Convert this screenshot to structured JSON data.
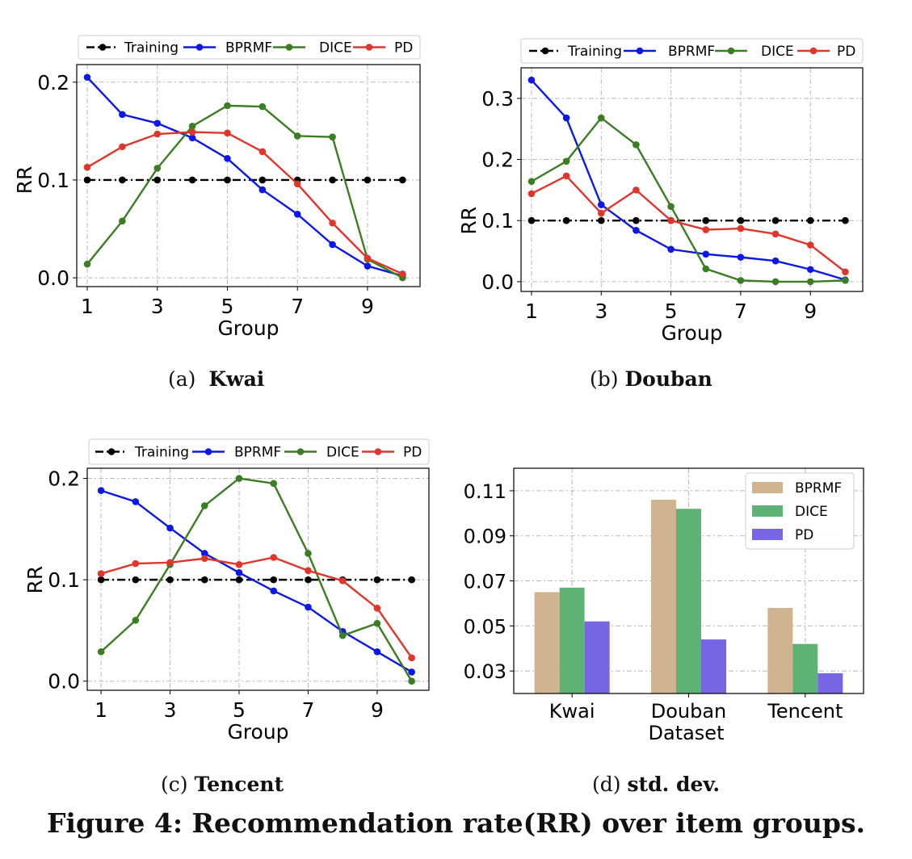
{
  "figure": {
    "title": "Figure 4: Recommendation rate(RR) over item groups.",
    "colors": {
      "Training": "#000000",
      "BPRMF": "#0b18e6",
      "DICE": "#3a7d22",
      "PD": "#e0352b"
    }
  },
  "chart_data": [
    {
      "id": "a",
      "type": "line",
      "caption_label": "(a)",
      "caption_name": "Kwai",
      "xlabel": "Group",
      "ylabel": "RR",
      "x": [
        1,
        2,
        3,
        4,
        5,
        6,
        7,
        8,
        9,
        10
      ],
      "xticks": [
        "1",
        "3",
        "5",
        "7",
        "9"
      ],
      "yticks": [
        "0.0",
        "0.1",
        "0.2"
      ],
      "xlim": [
        0.7,
        10.5
      ],
      "ylim": [
        -0.009,
        0.218
      ],
      "grid": true,
      "legend": "top",
      "series": [
        {
          "name": "Training",
          "values": [
            0.1,
            0.1,
            0.1,
            0.1,
            0.1,
            0.1,
            0.1,
            0.1,
            0.1,
            0.1
          ],
          "style": "dashdot"
        },
        {
          "name": "BPRMF",
          "values": [
            0.205,
            0.167,
            0.158,
            0.143,
            0.122,
            0.09,
            0.065,
            0.034,
            0.012,
            0.002
          ]
        },
        {
          "name": "DICE",
          "values": [
            0.014,
            0.058,
            0.112,
            0.155,
            0.176,
            0.175,
            0.145,
            0.144,
            0.019,
            0.0
          ]
        },
        {
          "name": "PD",
          "values": [
            0.113,
            0.134,
            0.147,
            0.149,
            0.148,
            0.129,
            0.096,
            0.056,
            0.02,
            0.004
          ]
        }
      ]
    },
    {
      "id": "b",
      "type": "line",
      "caption_label": "(b)",
      "caption_name": "Douban",
      "xlabel": "Group",
      "ylabel": "RR",
      "x": [
        1,
        2,
        3,
        4,
        5,
        6,
        7,
        8,
        9,
        10
      ],
      "xticks": [
        "1",
        "3",
        "5",
        "7",
        "9"
      ],
      "yticks": [
        "0.0",
        "0.1",
        "0.2",
        "0.3"
      ],
      "xlim": [
        0.7,
        10.5
      ],
      "ylim": [
        -0.016,
        0.35
      ],
      "grid": true,
      "legend": "top",
      "series": [
        {
          "name": "Training",
          "values": [
            0.1,
            0.1,
            0.1,
            0.1,
            0.1,
            0.1,
            0.1,
            0.1,
            0.1,
            0.1
          ],
          "style": "dashdot"
        },
        {
          "name": "BPRMF",
          "values": [
            0.33,
            0.268,
            0.126,
            0.084,
            0.053,
            0.045,
            0.04,
            0.034,
            0.02,
            0.003
          ]
        },
        {
          "name": "DICE",
          "values": [
            0.164,
            0.197,
            0.268,
            0.224,
            0.123,
            0.021,
            0.002,
            0.0,
            0.0,
            0.002
          ]
        },
        {
          "name": "PD",
          "values": [
            0.144,
            0.173,
            0.112,
            0.15,
            0.1,
            0.085,
            0.087,
            0.078,
            0.06,
            0.016
          ]
        }
      ]
    },
    {
      "id": "c",
      "type": "line",
      "caption_label": "(c)",
      "caption_name": "Tencent",
      "xlabel": "Group",
      "ylabel": "RR",
      "x": [
        1,
        2,
        3,
        4,
        5,
        6,
        7,
        8,
        9,
        10
      ],
      "xticks": [
        "1",
        "3",
        "5",
        "7",
        "9"
      ],
      "yticks": [
        "0.0",
        "0.1",
        "0.2"
      ],
      "xlim": [
        0.6,
        10.5
      ],
      "ylim": [
        -0.009,
        0.21
      ],
      "grid": true,
      "legend": "top",
      "series": [
        {
          "name": "Training",
          "values": [
            0.1,
            0.1,
            0.1,
            0.1,
            0.1,
            0.1,
            0.1,
            0.1,
            0.1,
            0.1
          ],
          "style": "dashdot"
        },
        {
          "name": "BPRMF",
          "values": [
            0.188,
            0.177,
            0.151,
            0.126,
            0.107,
            0.089,
            0.073,
            0.049,
            0.029,
            0.009
          ]
        },
        {
          "name": "DICE",
          "values": [
            0.029,
            0.06,
            0.115,
            0.173,
            0.2,
            0.195,
            0.126,
            0.045,
            0.057,
            0.0
          ]
        },
        {
          "name": "PD",
          "values": [
            0.106,
            0.116,
            0.117,
            0.121,
            0.115,
            0.122,
            0.109,
            0.099,
            0.072,
            0.023
          ]
        }
      ]
    },
    {
      "id": "d",
      "type": "bar",
      "caption_label": "(d)",
      "caption_name": "std. dev.",
      "xlabel": "Dataset",
      "ylabel": "",
      "categories": [
        "Kwai",
        "Douban",
        "Tencent"
      ],
      "yticks": [
        "0.03",
        "0.05",
        "0.07",
        "0.09",
        "0.11"
      ],
      "ylim": [
        0.02,
        0.12
      ],
      "grid": true,
      "legend": "top-right",
      "series": [
        {
          "name": "BPRMF",
          "values": [
            0.065,
            0.106,
            0.058
          ],
          "color": "#cfb48f"
        },
        {
          "name": "DICE",
          "values": [
            0.067,
            0.102,
            0.042
          ],
          "color": "#5fb275"
        },
        {
          "name": "PD",
          "values": [
            0.052,
            0.044,
            0.029
          ],
          "color": "#7766e4"
        }
      ]
    }
  ]
}
